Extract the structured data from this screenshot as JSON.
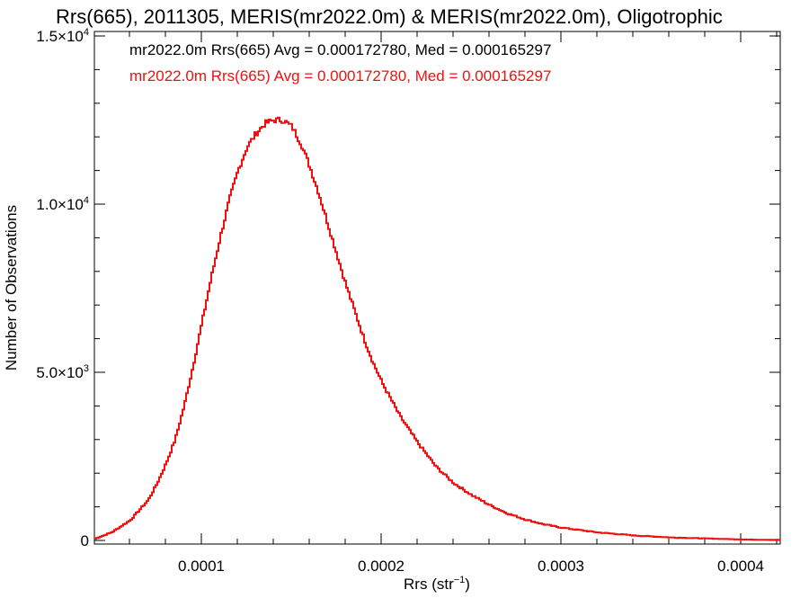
{
  "chart_data": {
    "type": "line",
    "title": "Rrs(665), 2011305, MERIS(mr2022.0m) & MERIS(mr2022.0m), Oligotrophic",
    "xlabel": "Rrs (str",
    "xlabel_sup": "−1",
    "xlabel_end": ")",
    "ylabel": "Number of Observations",
    "xlim": [
      4.05e-05,
      0.000422
    ],
    "ylim": [
      0,
      15000
    ],
    "x_ticks": [
      {
        "value": 0.0001,
        "label": "0.0001"
      },
      {
        "value": 0.0002,
        "label": "0.0002"
      },
      {
        "value": 0.0003,
        "label": "0.0003"
      },
      {
        "value": 0.0004,
        "label": "0.0004"
      }
    ],
    "y_ticks": [
      {
        "value": 0,
        "mant": "0",
        "exp": ""
      },
      {
        "value": 5000,
        "mant": "5.0×10",
        "exp": "3"
      },
      {
        "value": 10000,
        "mant": "1.0×10",
        "exp": "4"
      },
      {
        "value": 15000,
        "mant": "1.5×10",
        "exp": "4"
      }
    ],
    "annotations": [
      {
        "text": "mr2022.0m Rrs(665) Avg = 0.000172780, Med = 0.000165297",
        "color": "#000000"
      },
      {
        "text": "mr2022.0m Rrs(665) Avg = 0.000172780, Med = 0.000165297",
        "color": "#ee1111"
      }
    ],
    "series": [
      {
        "color": "#ee1111",
        "step": true,
        "x": [
          4.05e-05,
          5e-05,
          6e-05,
          7e-05,
          7.5e-05,
          8e-05,
          8.5e-05,
          9e-05,
          9.5e-05,
          0.0001,
          0.000105,
          0.00011,
          0.000115,
          0.00012,
          0.000125,
          0.00013,
          0.000135,
          0.00014,
          0.000145,
          0.00015,
          0.000155,
          0.00016,
          0.000165,
          0.00017,
          0.000175,
          0.00018,
          0.000185,
          0.00019,
          0.000195,
          0.0002,
          0.000205,
          0.00021,
          0.000215,
          0.00022,
          0.000225,
          0.00023,
          0.000235,
          0.00024,
          0.00025,
          0.00026,
          0.00027,
          0.00028,
          0.00029,
          0.0003,
          0.00032,
          0.00034,
          0.00036,
          0.00038,
          0.0004,
          0.00042
        ],
        "y": [
          50,
          250,
          600,
          1200,
          1700,
          2300,
          3000,
          4000,
          5200,
          6500,
          7800,
          9000,
          10100,
          11000,
          11700,
          12100,
          12400,
          12500,
          12500,
          12300,
          11800,
          11100,
          10300,
          9400,
          8500,
          7600,
          6800,
          6000,
          5300,
          4700,
          4200,
          3700,
          3300,
          2900,
          2550,
          2200,
          1950,
          1700,
          1350,
          1050,
          800,
          620,
          480,
          380,
          240,
          150,
          90,
          60,
          30,
          15
        ]
      }
    ]
  }
}
